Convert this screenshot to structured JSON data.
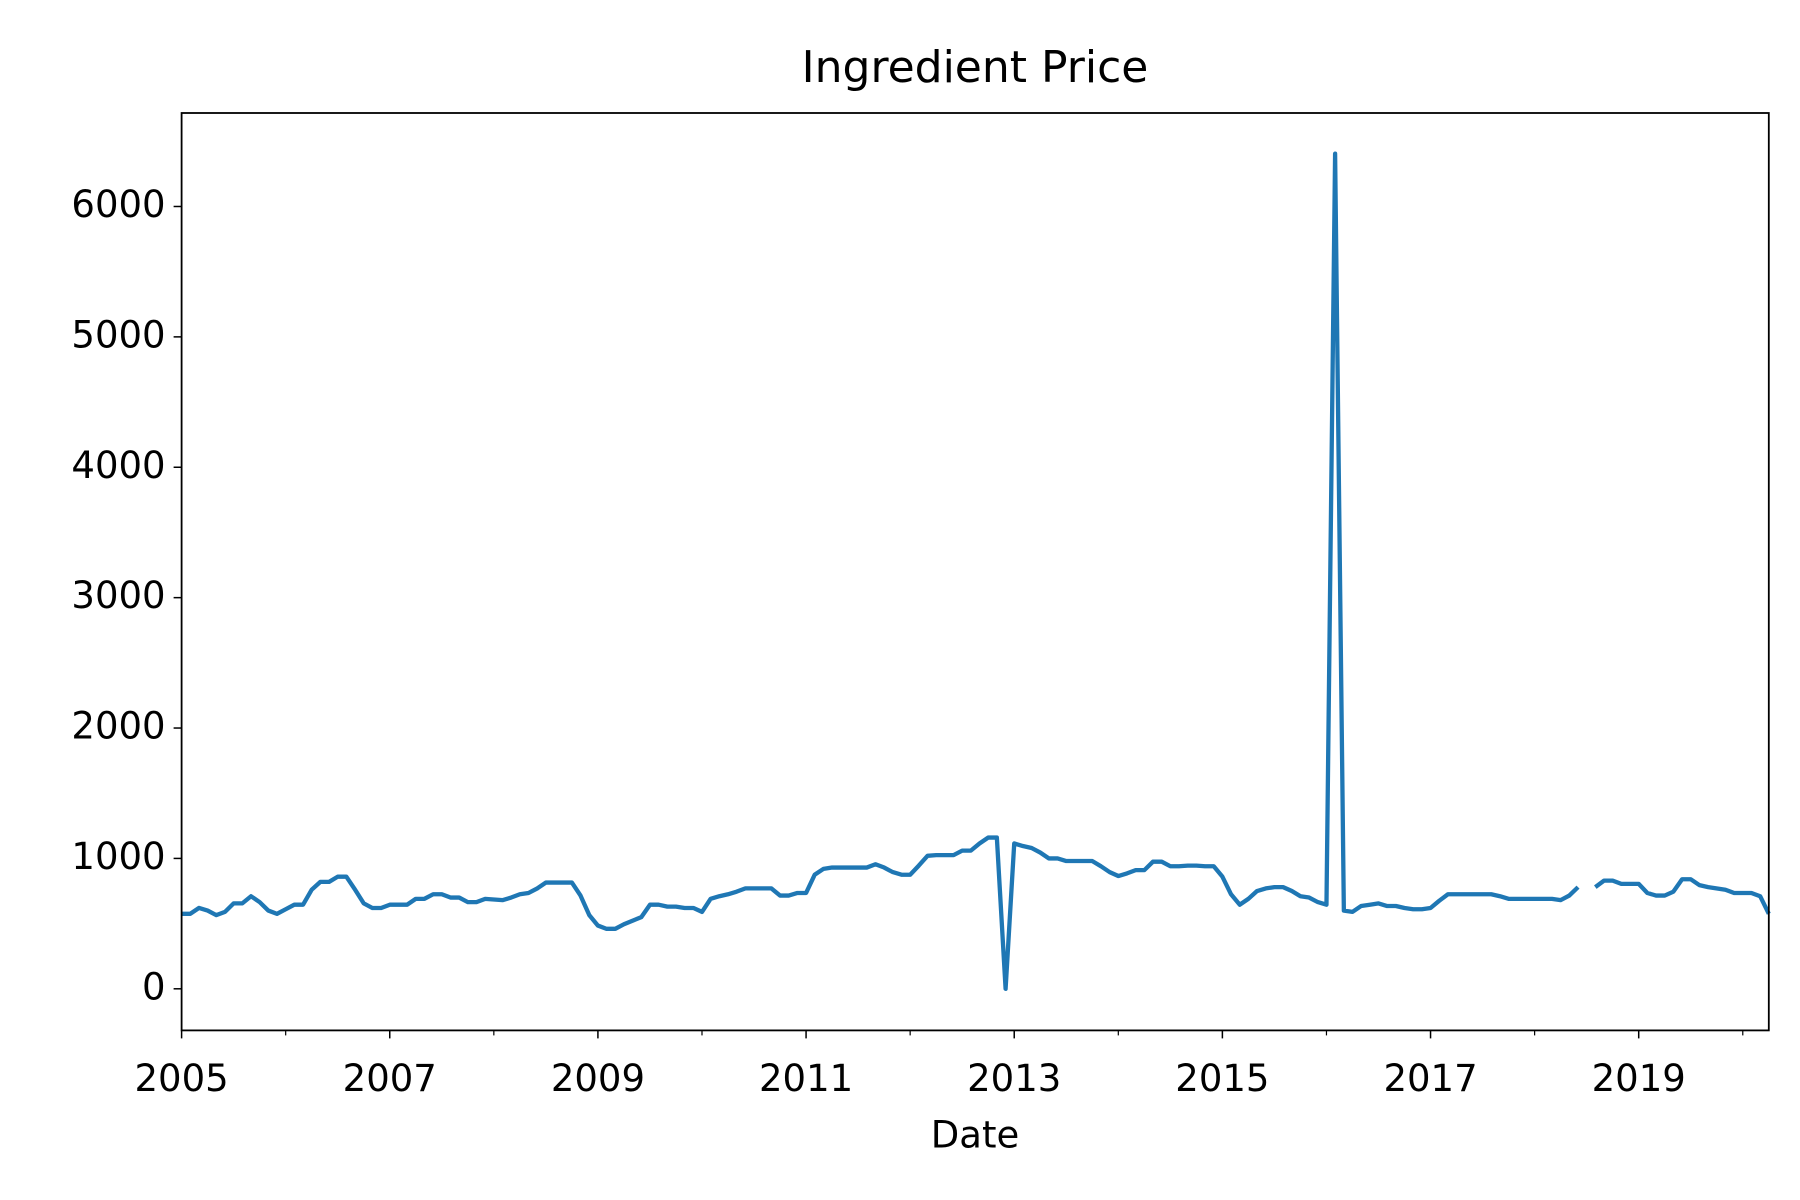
{
  "chart_data": {
    "type": "line",
    "title": "Ingredient Price",
    "x_label": "Date",
    "xlim": [
      2005,
      2020.25
    ],
    "xticks": [
      2005,
      2007,
      2009,
      2011,
      2013,
      2015,
      2017,
      2019
    ],
    "xticks_minor": [
      2006,
      2008,
      2010,
      2012,
      2014,
      2016,
      2018,
      2020
    ],
    "ylim": [
      -319,
      6717
    ],
    "yticks": [
      0,
      1000,
      2000,
      3000,
      4000,
      5000,
      6000
    ],
    "grid": false,
    "series": [
      {
        "name": "Ingredient Price",
        "color": "#1f77b4",
        "x": [
          2005,
          2005.083,
          2005.167,
          2005.25,
          2005.333,
          2005.417,
          2005.5,
          2005.583,
          2005.667,
          2005.75,
          2005.833,
          2005.917,
          2006,
          2006.083,
          2006.167,
          2006.25,
          2006.333,
          2006.417,
          2006.5,
          2006.583,
          2006.667,
          2006.75,
          2006.833,
          2006.917,
          2007,
          2007.167,
          2007.25,
          2007.333,
          2007.417,
          2007.5,
          2007.583,
          2007.667,
          2007.75,
          2007.833,
          2007.917,
          2008.083,
          2008.167,
          2008.25,
          2008.333,
          2008.417,
          2008.5,
          2008.75,
          2008.833,
          2008.917,
          2009,
          2009.083,
          2009.167,
          2009.25,
          2009.417,
          2009.5,
          2009.583,
          2009.667,
          2009.75,
          2009.833,
          2009.917,
          2010,
          2010.083,
          2010.167,
          2010.25,
          2010.333,
          2010.417,
          2010.667,
          2010.75,
          2010.833,
          2010.917,
          2011,
          2011.083,
          2011.167,
          2011.25,
          2011.583,
          2011.667,
          2011.75,
          2011.833,
          2011.917,
          2012,
          2012.083,
          2012.167,
          2012.25,
          2012.417,
          2012.5,
          2012.583,
          2012.667,
          2012.75,
          2012.833,
          2012.917,
          2013,
          2013.083,
          2013.167,
          2013.25,
          2013.333,
          2013.417,
          2013.5,
          2013.75,
          2013.833,
          2013.917,
          2014,
          2014.083,
          2014.167,
          2014.25,
          2014.333,
          2014.417,
          2014.5,
          2014.583,
          2014.667,
          2014.75,
          2014.833,
          2014.917,
          2015,
          2015.083,
          2015.167,
          2015.25,
          2015.333,
          2015.417,
          2015.5,
          2015.583,
          2015.667,
          2015.75,
          2015.833,
          2015.917,
          2016,
          2016.083,
          2016.167,
          2016.25,
          2016.333,
          2016.417,
          2016.5,
          2016.583,
          2016.667,
          2016.75,
          2016.833,
          2016.917,
          2017,
          2017.083,
          2017.167,
          2017.583,
          2017.667,
          2017.75,
          2018.167,
          2018.25,
          2018.333,
          2018.417,
          2018.5,
          2018.583,
          2018.667,
          2018.75,
          2018.833,
          2019,
          2019.083,
          2019.167,
          2019.25,
          2019.333,
          2019.417,
          2019.5,
          2019.583,
          2019.667,
          2019.833,
          2019.917,
          2020.083,
          2020.167,
          2020.25
        ],
        "values": [
          575,
          575,
          620,
          600,
          565,
          590,
          655,
          655,
          710,
          665,
          600,
          575,
          610,
          645,
          645,
          760,
          820,
          820,
          860,
          860,
          760,
          655,
          620,
          620,
          645,
          645,
          690,
          690,
          725,
          725,
          700,
          700,
          665,
          665,
          690,
          680,
          700,
          725,
          735,
          770,
          815,
          815,
          715,
          565,
          485,
          460,
          460,
          495,
          550,
          645,
          645,
          630,
          630,
          620,
          620,
          590,
          690,
          710,
          725,
          745,
          770,
          770,
          715,
          715,
          735,
          735,
          875,
          920,
          930,
          930,
          955,
          930,
          895,
          875,
          875,
          945,
          1020,
          1025,
          1025,
          1060,
          1060,
          1115,
          1160,
          1160,
          0,
          1115,
          1095,
          1080,
          1045,
          1000,
          1000,
          980,
          980,
          940,
          895,
          865,
          885,
          910,
          910,
          975,
          975,
          940,
          940,
          945,
          945,
          940,
          940,
          860,
          725,
          645,
          690,
          750,
          770,
          780,
          780,
          750,
          710,
          700,
          665,
          645,
          6405,
          600,
          590,
          635,
          645,
          655,
          635,
          635,
          620,
          610,
          610,
          620,
          675,
          725,
          725,
          710,
          690,
          690,
          680,
          715,
          780,
          null,
          780,
          830,
          830,
          805,
          805,
          735,
          715,
          715,
          745,
          840,
          840,
          795,
          780,
          760,
          735,
          735,
          710,
          575
        ]
      }
    ]
  }
}
